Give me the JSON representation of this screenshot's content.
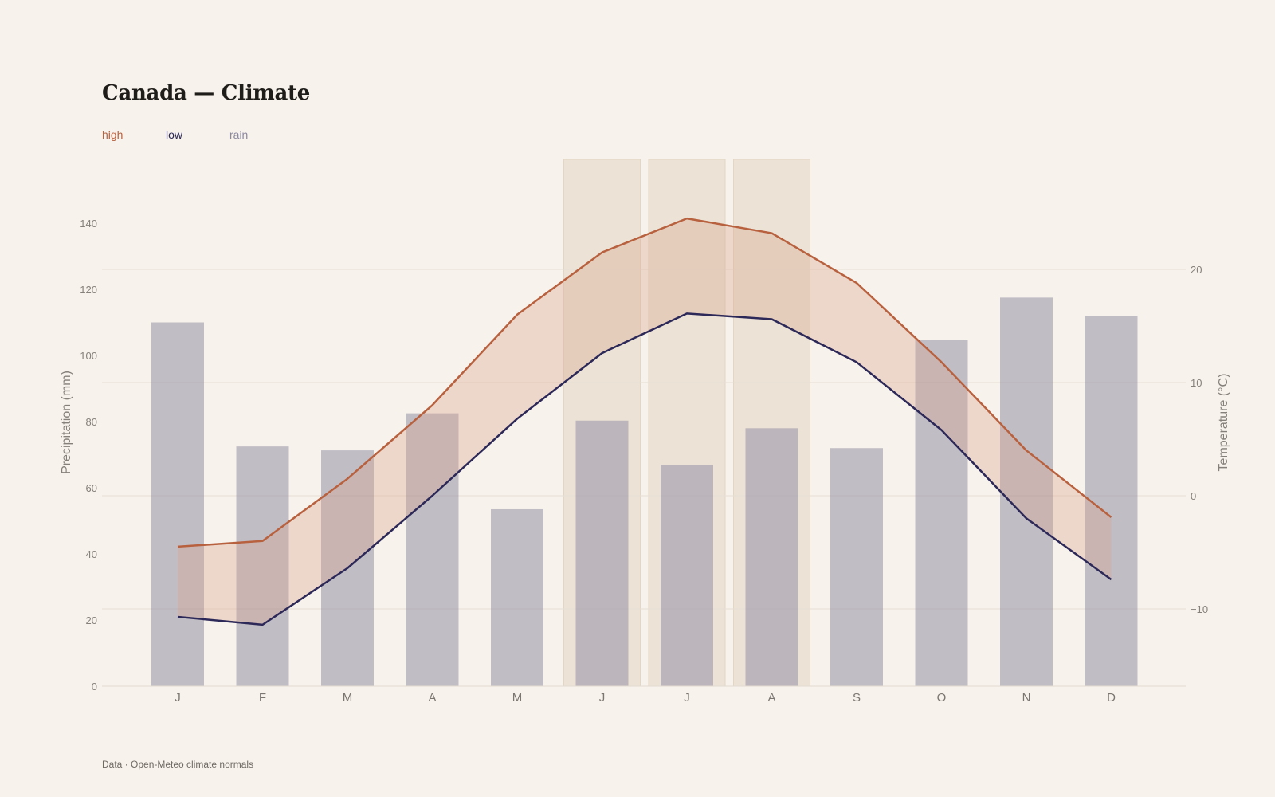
{
  "header": {
    "title": "Canada — Climate"
  },
  "legend": [
    {
      "label": "high",
      "color": "#b8613f"
    },
    {
      "label": "low",
      "color": "#2c2858"
    },
    {
      "label": "rain",
      "color": "#8c88a0"
    }
  ],
  "footer": {
    "source": "Data · Open-Meteo climate normals"
  },
  "chart_data": {
    "type": "bar",
    "categories": [
      "J",
      "F",
      "M",
      "A",
      "M",
      "J",
      "J",
      "A",
      "S",
      "O",
      "N",
      "D"
    ],
    "highlighted_months": [
      5,
      6,
      7
    ],
    "series": [
      {
        "name": "rain",
        "type": "bar",
        "axis": "left",
        "values": [
          110,
          72.5,
          71.3,
          82.5,
          53.5,
          80.3,
          66.8,
          78,
          72,
          104.7,
          117.5,
          112
        ]
      },
      {
        "name": "high",
        "type": "line",
        "axis": "right",
        "values": [
          -4.5,
          -4,
          1.5,
          8,
          16,
          21.5,
          24.5,
          23.2,
          18.8,
          11.8,
          4,
          -1.9
        ]
      },
      {
        "name": "low",
        "type": "line",
        "axis": "right",
        "values": [
          -10.7,
          -11.4,
          -6.4,
          0,
          6.8,
          12.6,
          16.1,
          15.6,
          11.8,
          5.8,
          -2,
          -7.4
        ]
      }
    ],
    "ylabel_left": "Precipitation (mm)",
    "ylabel_right": "Temperature (°C)",
    "ylim_left": [
      0,
      140
    ],
    "ylim_right": [
      -10,
      20
    ],
    "yticks_left": [
      "0",
      "20",
      "40",
      "60",
      "80",
      "100",
      "120",
      "140"
    ],
    "yticks_right": [
      "−10",
      "0",
      "10",
      "20"
    ],
    "grid": true,
    "legend_position": "top-left"
  }
}
